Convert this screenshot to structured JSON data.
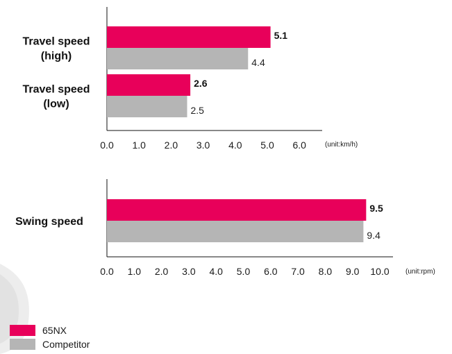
{
  "colors": {
    "primary": "#E8005A",
    "competitor": "#B5B5B5"
  },
  "legend": [
    {
      "name": "65NX",
      "color": "#E8005A"
    },
    {
      "name": "Competitor",
      "color": "#B5B5B5"
    }
  ],
  "chart_data": [
    {
      "type": "bar",
      "orientation": "horizontal",
      "categories": [
        "Travel speed\n(high)",
        "Travel speed\n(low)"
      ],
      "series": [
        {
          "name": "65NX",
          "values": [
            5.1,
            2.6
          ],
          "value_labels": [
            "5.1",
            "2.6"
          ]
        },
        {
          "name": "Competitor",
          "values": [
            4.4,
            2.5
          ],
          "value_labels": [
            "4.4",
            "2.5"
          ]
        }
      ],
      "xlim": [
        0,
        6.0
      ],
      "xticks": [
        "0.0",
        "1.0",
        "2.0",
        "3.0",
        "4.0",
        "5.0",
        "6.0"
      ],
      "unit_note": "(unit:km/h)",
      "grid": false
    },
    {
      "type": "bar",
      "orientation": "horizontal",
      "categories": [
        "Swing speed"
      ],
      "series": [
        {
          "name": "65NX",
          "values": [
            9.5
          ],
          "value_labels": [
            "9.5"
          ]
        },
        {
          "name": "Competitor",
          "values": [
            9.4
          ],
          "value_labels": [
            "9.4"
          ]
        }
      ],
      "xlim": [
        0,
        10.0
      ],
      "xticks": [
        "0.0",
        "1.0",
        "2.0",
        "3.0",
        "4.0",
        "5.0",
        "6.0",
        "7.0",
        "8.0",
        "9.0",
        "10.0"
      ],
      "unit_note": "(unit:rpm)",
      "grid": false
    }
  ]
}
